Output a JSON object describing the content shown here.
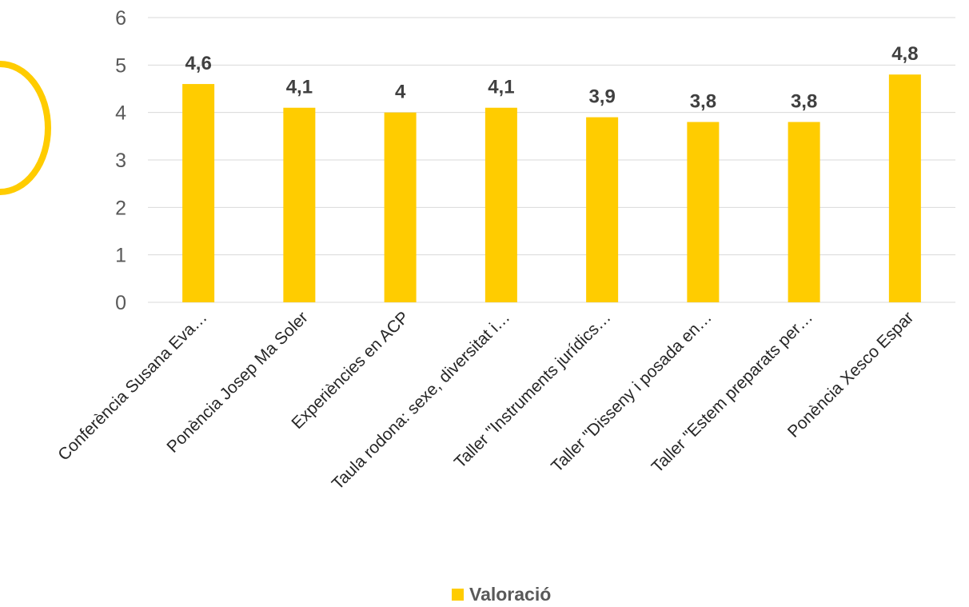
{
  "colors": {
    "bar": "#FFCC00",
    "decoration": "#FFCC00",
    "grid": "#D9D9D9"
  },
  "chart_data": {
    "type": "bar",
    "categories": [
      "Conferència Susana Eva…",
      "Ponència Josep Ma Soler",
      "Experiències en ACP",
      "Taula rodona: sexe, diversitat i…",
      "Taller \"Instruments jurídics…",
      "Taller \"Disseny i posada en…",
      "Taller \"Estem preparats per…",
      "Ponència Xesco Espar"
    ],
    "series": [
      {
        "name": "Valoració",
        "values": [
          4.6,
          4.1,
          4.0,
          4.1,
          3.9,
          3.8,
          3.8,
          4.8
        ]
      }
    ],
    "data_labels": [
      "4,6",
      "4,1",
      "4",
      "4,1",
      "3,9",
      "3,8",
      "3,8",
      "4,8"
    ],
    "yticks": [
      "0",
      "1",
      "2",
      "3",
      "4",
      "5",
      "6"
    ],
    "ylim": [
      0,
      6
    ],
    "grid": true,
    "legend": {
      "position": "bottom",
      "label": "Valoració"
    }
  }
}
